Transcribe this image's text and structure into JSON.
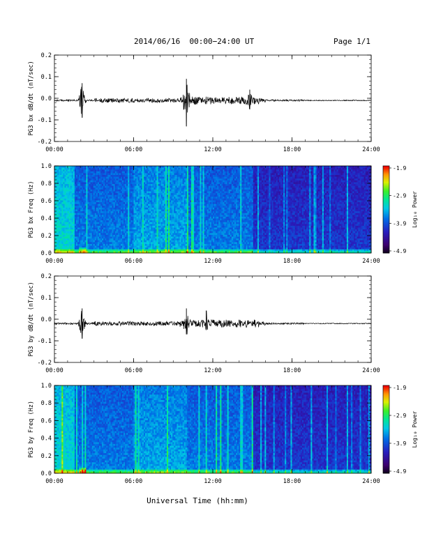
{
  "header": {
    "title": "2014/06/16  00:00−24:00 UT",
    "page": "Page 1/1"
  },
  "xaxis_title": "Universal Time (hh:mm)",
  "colorbar": {
    "label": "Log₁₀ Power",
    "ticks": [
      "-1.9",
      "-2.9",
      "-3.9",
      "-4.9"
    ],
    "range": [
      -4.9,
      -1.9
    ]
  },
  "chart_data": [
    {
      "type": "line",
      "title": "",
      "ylabel": "PG3 bx dB/dt (nT/sec)",
      "xlabel": "",
      "xlim": [
        "00:00",
        "24:00"
      ],
      "xticks": [
        "00:00",
        "06:00",
        "12:00",
        "18:00",
        "24:00"
      ],
      "ylim": [
        -0.2,
        0.2
      ],
      "yticks": [
        "0.2",
        "0.1",
        "0.0",
        "-0.1",
        "-0.2"
      ],
      "baseline": -0.01,
      "bursts": [
        {
          "t_hours": 2.1,
          "max": 0.07,
          "min": -0.09
        },
        {
          "t_hours": 10.0,
          "max": 0.09,
          "min": -0.13
        },
        {
          "t_hours": 14.8,
          "max": 0.04,
          "min": -0.05
        }
      ]
    },
    {
      "type": "heatmap",
      "title": "",
      "ylabel": "PG3 bx Freq (Hz)",
      "xlabel": "",
      "xlim": [
        "00:00",
        "24:00"
      ],
      "xticks": [
        "00:00",
        "06:00",
        "12:00",
        "18:00",
        "24:00"
      ],
      "ylim": [
        0.0,
        1.0
      ],
      "yticks": [
        "1.0",
        "0.8",
        "0.6",
        "0.4",
        "0.2",
        "0.0"
      ]
    },
    {
      "type": "line",
      "title": "",
      "ylabel": "PG3 by dB/dt (nT/sec)",
      "xlabel": "",
      "xlim": [
        "00:00",
        "24:00"
      ],
      "xticks": [
        "00:00",
        "06:00",
        "12:00",
        "18:00",
        "24:00"
      ],
      "ylim": [
        -0.2,
        0.2
      ],
      "yticks": [
        "0.2",
        "0.1",
        "0.0",
        "-0.1",
        "-0.2"
      ],
      "baseline": -0.02,
      "bursts": [
        {
          "t_hours": 2.1,
          "max": 0.05,
          "min": -0.09
        },
        {
          "t_hours": 10.0,
          "max": 0.05,
          "min": -0.07
        },
        {
          "t_hours": 11.5,
          "max": 0.04,
          "min": -0.05
        }
      ]
    },
    {
      "type": "heatmap",
      "title": "",
      "ylabel": "PG3 by Freq (Hz)",
      "xlabel": "Universal Time (hh:mm)",
      "xlim": [
        "00:00",
        "24:00"
      ],
      "xticks": [
        "00:00",
        "06:00",
        "12:00",
        "18:00",
        "24:00"
      ],
      "ylim": [
        0.0,
        1.0
      ],
      "yticks": [
        "1.0",
        "0.8",
        "0.6",
        "0.4",
        "0.2",
        "0.0"
      ]
    }
  ]
}
